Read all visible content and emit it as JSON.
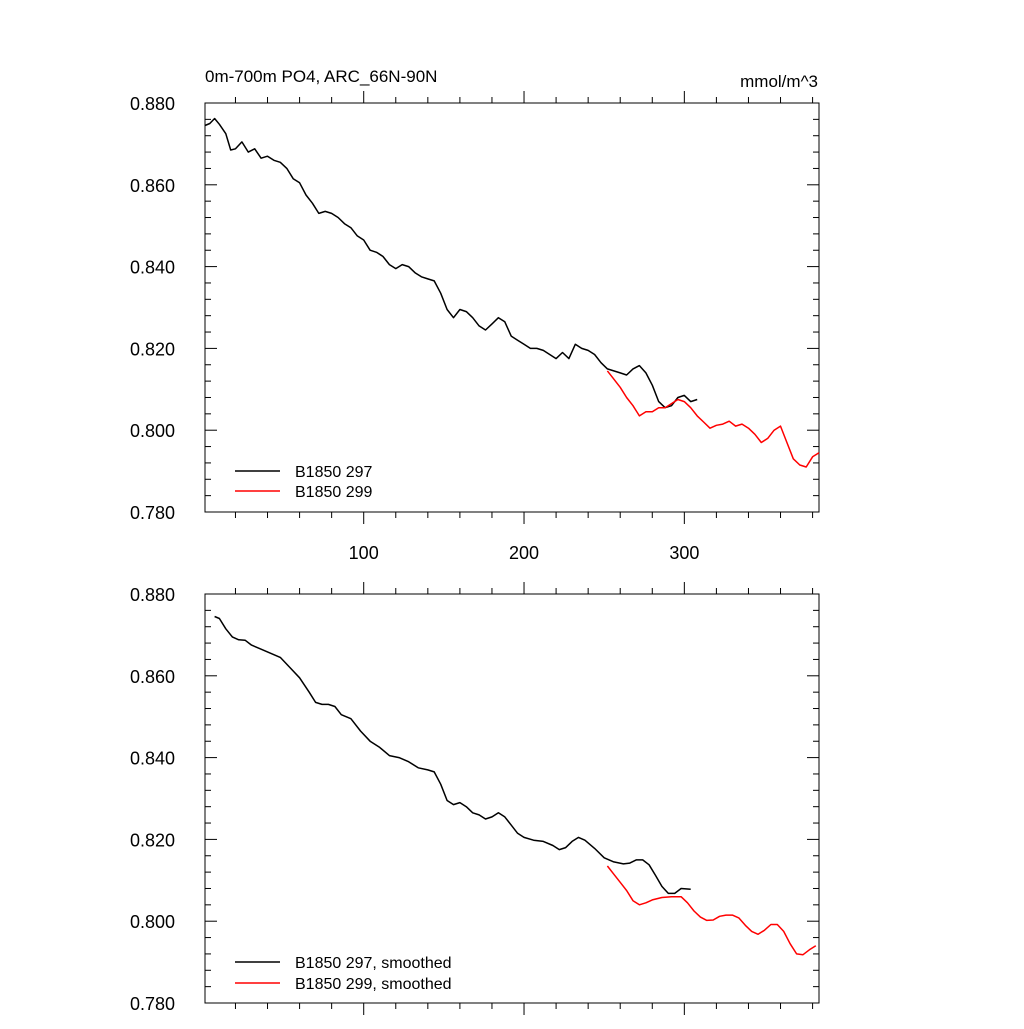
{
  "chart_data": [
    {
      "type": "line",
      "title": "0m-700m PO4, ARC_66N-90N",
      "units": "mmol/m^3",
      "xlim": [
        1,
        384
      ],
      "ylim": [
        0.78,
        0.88
      ],
      "x_ticks": [
        100,
        200,
        300
      ],
      "x_tick_labels": [
        "100",
        "200",
        "300"
      ],
      "y_ticks": [
        0.78,
        0.8,
        0.82,
        0.84,
        0.86,
        0.88
      ],
      "y_tick_labels": [
        "0.780",
        "0.800",
        "0.820",
        "0.840",
        "0.860",
        "0.880"
      ],
      "legend_position": "bottom-left",
      "series": [
        {
          "name": "B1850 297",
          "color": "#000000",
          "points": [
            [
              1,
              0.8745
            ],
            [
              4,
              0.875
            ],
            [
              7,
              0.8762
            ],
            [
              10,
              0.8748
            ],
            [
              14,
              0.8725
            ],
            [
              17,
              0.8685
            ],
            [
              20,
              0.8688
            ],
            [
              24,
              0.8705
            ],
            [
              28,
              0.868
            ],
            [
              32,
              0.8688
            ],
            [
              36,
              0.8665
            ],
            [
              40,
              0.867
            ],
            [
              44,
              0.866
            ],
            [
              48,
              0.8655
            ],
            [
              52,
              0.864
            ],
            [
              56,
              0.8615
            ],
            [
              60,
              0.8605
            ],
            [
              64,
              0.8575
            ],
            [
              68,
              0.8555
            ],
            [
              72,
              0.853
            ],
            [
              76,
              0.8535
            ],
            [
              80,
              0.853
            ],
            [
              84,
              0.852
            ],
            [
              88,
              0.8505
            ],
            [
              92,
              0.8495
            ],
            [
              96,
              0.8475
            ],
            [
              100,
              0.8465
            ],
            [
              104,
              0.844
            ],
            [
              108,
              0.8435
            ],
            [
              112,
              0.8425
            ],
            [
              116,
              0.8405
            ],
            [
              120,
              0.8395
            ],
            [
              124,
              0.8405
            ],
            [
              128,
              0.84
            ],
            [
              132,
              0.8385
            ],
            [
              136,
              0.8375
            ],
            [
              140,
              0.837
            ],
            [
              144,
              0.8365
            ],
            [
              148,
              0.8335
            ],
            [
              152,
              0.8295
            ],
            [
              156,
              0.8275
            ],
            [
              160,
              0.8295
            ],
            [
              164,
              0.829
            ],
            [
              168,
              0.8275
            ],
            [
              172,
              0.8255
            ],
            [
              176,
              0.8245
            ],
            [
              180,
              0.826
            ],
            [
              184,
              0.8275
            ],
            [
              188,
              0.8265
            ],
            [
              192,
              0.823
            ],
            [
              196,
              0.822
            ],
            [
              200,
              0.821
            ],
            [
              204,
              0.82
            ],
            [
              208,
              0.82
            ],
            [
              212,
              0.8195
            ],
            [
              216,
              0.8185
            ],
            [
              220,
              0.8175
            ],
            [
              224,
              0.819
            ],
            [
              228,
              0.8175
            ],
            [
              232,
              0.821
            ],
            [
              236,
              0.82
            ],
            [
              240,
              0.8195
            ],
            [
              244,
              0.8185
            ],
            [
              248,
              0.8165
            ],
            [
              252,
              0.815
            ],
            [
              256,
              0.8145
            ],
            [
              260,
              0.814
            ],
            [
              264,
              0.8135
            ],
            [
              268,
              0.815
            ],
            [
              272,
              0.8158
            ],
            [
              276,
              0.814
            ],
            [
              280,
              0.811
            ],
            [
              284,
              0.807
            ],
            [
              288,
              0.8055
            ],
            [
              292,
              0.806
            ],
            [
              296,
              0.808
            ],
            [
              300,
              0.8085
            ],
            [
              304,
              0.807
            ],
            [
              308,
              0.8075
            ]
          ]
        },
        {
          "name": "B1850 299",
          "color": "#ff0000",
          "points": [
            [
              252,
              0.8145
            ],
            [
              256,
              0.8125
            ],
            [
              260,
              0.8105
            ],
            [
              264,
              0.808
            ],
            [
              268,
              0.806
            ],
            [
              272,
              0.8035
            ],
            [
              276,
              0.8045
            ],
            [
              280,
              0.8045
            ],
            [
              284,
              0.8055
            ],
            [
              288,
              0.8055
            ],
            [
              292,
              0.8065
            ],
            [
              296,
              0.8075
            ],
            [
              300,
              0.807
            ],
            [
              304,
              0.8055
            ],
            [
              308,
              0.8035
            ],
            [
              312,
              0.802
            ],
            [
              316,
              0.8005
            ],
            [
              320,
              0.8012
            ],
            [
              324,
              0.8015
            ],
            [
              328,
              0.8022
            ],
            [
              332,
              0.801
            ],
            [
              336,
              0.8015
            ],
            [
              340,
              0.8005
            ],
            [
              344,
              0.799
            ],
            [
              348,
              0.797
            ],
            [
              352,
              0.798
            ],
            [
              356,
              0.8
            ],
            [
              360,
              0.801
            ],
            [
              364,
              0.797
            ],
            [
              368,
              0.793
            ],
            [
              372,
              0.7915
            ],
            [
              376,
              0.791
            ],
            [
              380,
              0.7935
            ],
            [
              384,
              0.7945
            ]
          ]
        }
      ]
    },
    {
      "type": "line",
      "xlim": [
        1,
        384
      ],
      "ylim": [
        0.78,
        0.88
      ],
      "x_ticks": [
        100,
        200,
        300
      ],
      "y_ticks": [
        0.78,
        0.8,
        0.82,
        0.84,
        0.86,
        0.88
      ],
      "y_tick_labels": [
        "0.780",
        "0.800",
        "0.820",
        "0.840",
        "0.860",
        "0.880"
      ],
      "legend_position": "bottom-left",
      "series": [
        {
          "name": "B1850 297, smoothed",
          "color": "#000000",
          "points": [
            [
              7,
              0.8745
            ],
            [
              10,
              0.874
            ],
            [
              14,
              0.8715
            ],
            [
              18,
              0.8695
            ],
            [
              22,
              0.8688
            ],
            [
              26,
              0.8687
            ],
            [
              30,
              0.8675
            ],
            [
              36,
              0.8665
            ],
            [
              42,
              0.8655
            ],
            [
              48,
              0.8645
            ],
            [
              54,
              0.862
            ],
            [
              60,
              0.8595
            ],
            [
              66,
              0.856
            ],
            [
              70,
              0.8535
            ],
            [
              74,
              0.853
            ],
            [
              78,
              0.853
            ],
            [
              82,
              0.8525
            ],
            [
              86,
              0.8505
            ],
            [
              92,
              0.8495
            ],
            [
              98,
              0.8465
            ],
            [
              104,
              0.844
            ],
            [
              110,
              0.8425
            ],
            [
              116,
              0.8405
            ],
            [
              122,
              0.84
            ],
            [
              128,
              0.839
            ],
            [
              134,
              0.8375
            ],
            [
              140,
              0.837
            ],
            [
              144,
              0.8365
            ],
            [
              148,
              0.8335
            ],
            [
              152,
              0.8295
            ],
            [
              156,
              0.8285
            ],
            [
              160,
              0.829
            ],
            [
              164,
              0.828
            ],
            [
              168,
              0.8265
            ],
            [
              172,
              0.826
            ],
            [
              176,
              0.825
            ],
            [
              180,
              0.8255
            ],
            [
              184,
              0.8265
            ],
            [
              188,
              0.8255
            ],
            [
              192,
              0.8235
            ],
            [
              196,
              0.8215
            ],
            [
              200,
              0.8205
            ],
            [
              206,
              0.8198
            ],
            [
              212,
              0.8195
            ],
            [
              218,
              0.8185
            ],
            [
              222,
              0.8175
            ],
            [
              226,
              0.818
            ],
            [
              230,
              0.8195
            ],
            [
              234,
              0.8205
            ],
            [
              238,
              0.8198
            ],
            [
              244,
              0.8178
            ],
            [
              250,
              0.8155
            ],
            [
              256,
              0.8145
            ],
            [
              262,
              0.814
            ],
            [
              266,
              0.8142
            ],
            [
              270,
              0.815
            ],
            [
              274,
              0.815
            ],
            [
              278,
              0.8138
            ],
            [
              282,
              0.8112
            ],
            [
              286,
              0.8085
            ],
            [
              290,
              0.8068
            ],
            [
              294,
              0.8068
            ],
            [
              298,
              0.808
            ],
            [
              304,
              0.8078
            ]
          ]
        },
        {
          "name": "B1850 299, smoothed",
          "color": "#ff0000",
          "points": [
            [
              252,
              0.8135
            ],
            [
              256,
              0.8115
            ],
            [
              260,
              0.8095
            ],
            [
              264,
              0.8075
            ],
            [
              268,
              0.805
            ],
            [
              272,
              0.804
            ],
            [
              276,
              0.8045
            ],
            [
              280,
              0.8052
            ],
            [
              286,
              0.8058
            ],
            [
              292,
              0.806
            ],
            [
              298,
              0.806
            ],
            [
              302,
              0.8045
            ],
            [
              306,
              0.8025
            ],
            [
              310,
              0.801
            ],
            [
              314,
              0.8002
            ],
            [
              318,
              0.8003
            ],
            [
              322,
              0.8012
            ],
            [
              326,
              0.8015
            ],
            [
              330,
              0.8015
            ],
            [
              334,
              0.8008
            ],
            [
              338,
              0.799
            ],
            [
              342,
              0.7975
            ],
            [
              346,
              0.7968
            ],
            [
              350,
              0.7978
            ],
            [
              354,
              0.7992
            ],
            [
              358,
              0.7992
            ],
            [
              362,
              0.7975
            ],
            [
              366,
              0.7945
            ],
            [
              370,
              0.792
            ],
            [
              374,
              0.7918
            ],
            [
              378,
              0.793
            ],
            [
              382,
              0.794
            ]
          ]
        }
      ]
    }
  ]
}
